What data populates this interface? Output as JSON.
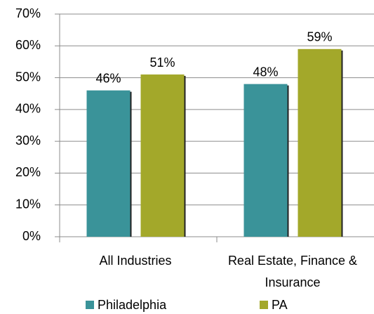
{
  "chart_data": {
    "type": "bar",
    "categories": [
      "All Industries",
      "Real Estate, Finance & Insurance"
    ],
    "series": [
      {
        "name": "Philadelphia",
        "color": "#3a9399",
        "values": [
          46,
          48
        ],
        "value_labels": [
          "46%",
          "48%"
        ]
      },
      {
        "name": "PA",
        "color": "#a3a82a",
        "values": [
          51,
          59
        ],
        "value_labels": [
          "51%",
          "59%"
        ]
      }
    ],
    "ylim": [
      0,
      70
    ],
    "yticks": [
      {
        "value": 0,
        "label": "0%"
      },
      {
        "value": 10,
        "label": "10%"
      },
      {
        "value": 20,
        "label": "20%"
      },
      {
        "value": 30,
        "label": "30%"
      },
      {
        "value": 40,
        "label": "40%"
      },
      {
        "value": 50,
        "label": "50%"
      },
      {
        "value": 60,
        "label": "60%"
      },
      {
        "value": 70,
        "label": "70%"
      }
    ],
    "grid": true,
    "legend": "bottom"
  }
}
